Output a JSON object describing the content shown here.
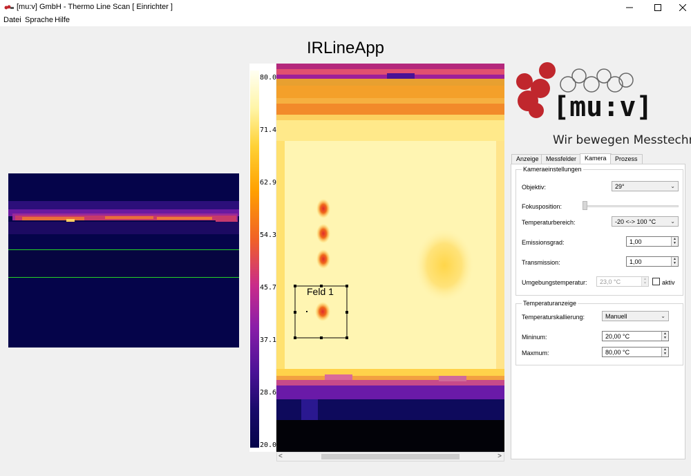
{
  "window": {
    "title": "[mu:v] GmbH - Thermo Line Scan [ Einrichter ]",
    "minimize_icon": "minimize-icon",
    "maximize_icon": "maximize-icon",
    "close_icon": "close-icon"
  },
  "menu": {
    "items": [
      "Datei",
      "Sprache",
      "Hilfe"
    ]
  },
  "app_title": "IRLineApp",
  "colorbar": {
    "labels": [
      "80.0",
      "71.4",
      "62.9",
      "54.3",
      "45.7",
      "37.1",
      "28.6",
      "20.0"
    ]
  },
  "measurement_field": {
    "label": "Feld 1"
  },
  "logo": {
    "brand": "[mu:v]",
    "slogan": "Wir bewegen Messtechnik"
  },
  "tabs": [
    {
      "label": "Anzeige",
      "active": false
    },
    {
      "label": "Messfelder",
      "active": false
    },
    {
      "label": "Kamera",
      "active": true
    },
    {
      "label": "Prozess",
      "active": false
    }
  ],
  "camera_settings": {
    "group_title": "Kameraeinstellungen",
    "objektiv_label": "Objektiv:",
    "objektiv_value": "29°",
    "fokus_label": "Fokusposition:",
    "temp_range_label": "Temperaturbereich:",
    "temp_range_value": "-20 <-> 100 °C",
    "emission_label": "Emissionsgrad:",
    "emission_value": "1,00",
    "transmission_label": "Transmission:",
    "transmission_value": "1,00",
    "ambient_label": "Umgebungstemperatur:",
    "ambient_value": "23,0 °C",
    "ambient_active_label": "aktiv",
    "ambient_active_checked": false
  },
  "temperature_display": {
    "group_title": "Temperaturanzeige",
    "scaling_label": "Temperaturskallierung:",
    "scaling_value": "Manuell",
    "min_label": "Mininum:",
    "min_value": "20,00 °C",
    "max_label": "Maxmum:",
    "max_value": "80,00 °C"
  },
  "colors": {
    "logo_red": "#c0272d",
    "thermal_hot": "#fff6b0",
    "thermal_cold": "#05044a",
    "roi_line": "#26d426"
  }
}
